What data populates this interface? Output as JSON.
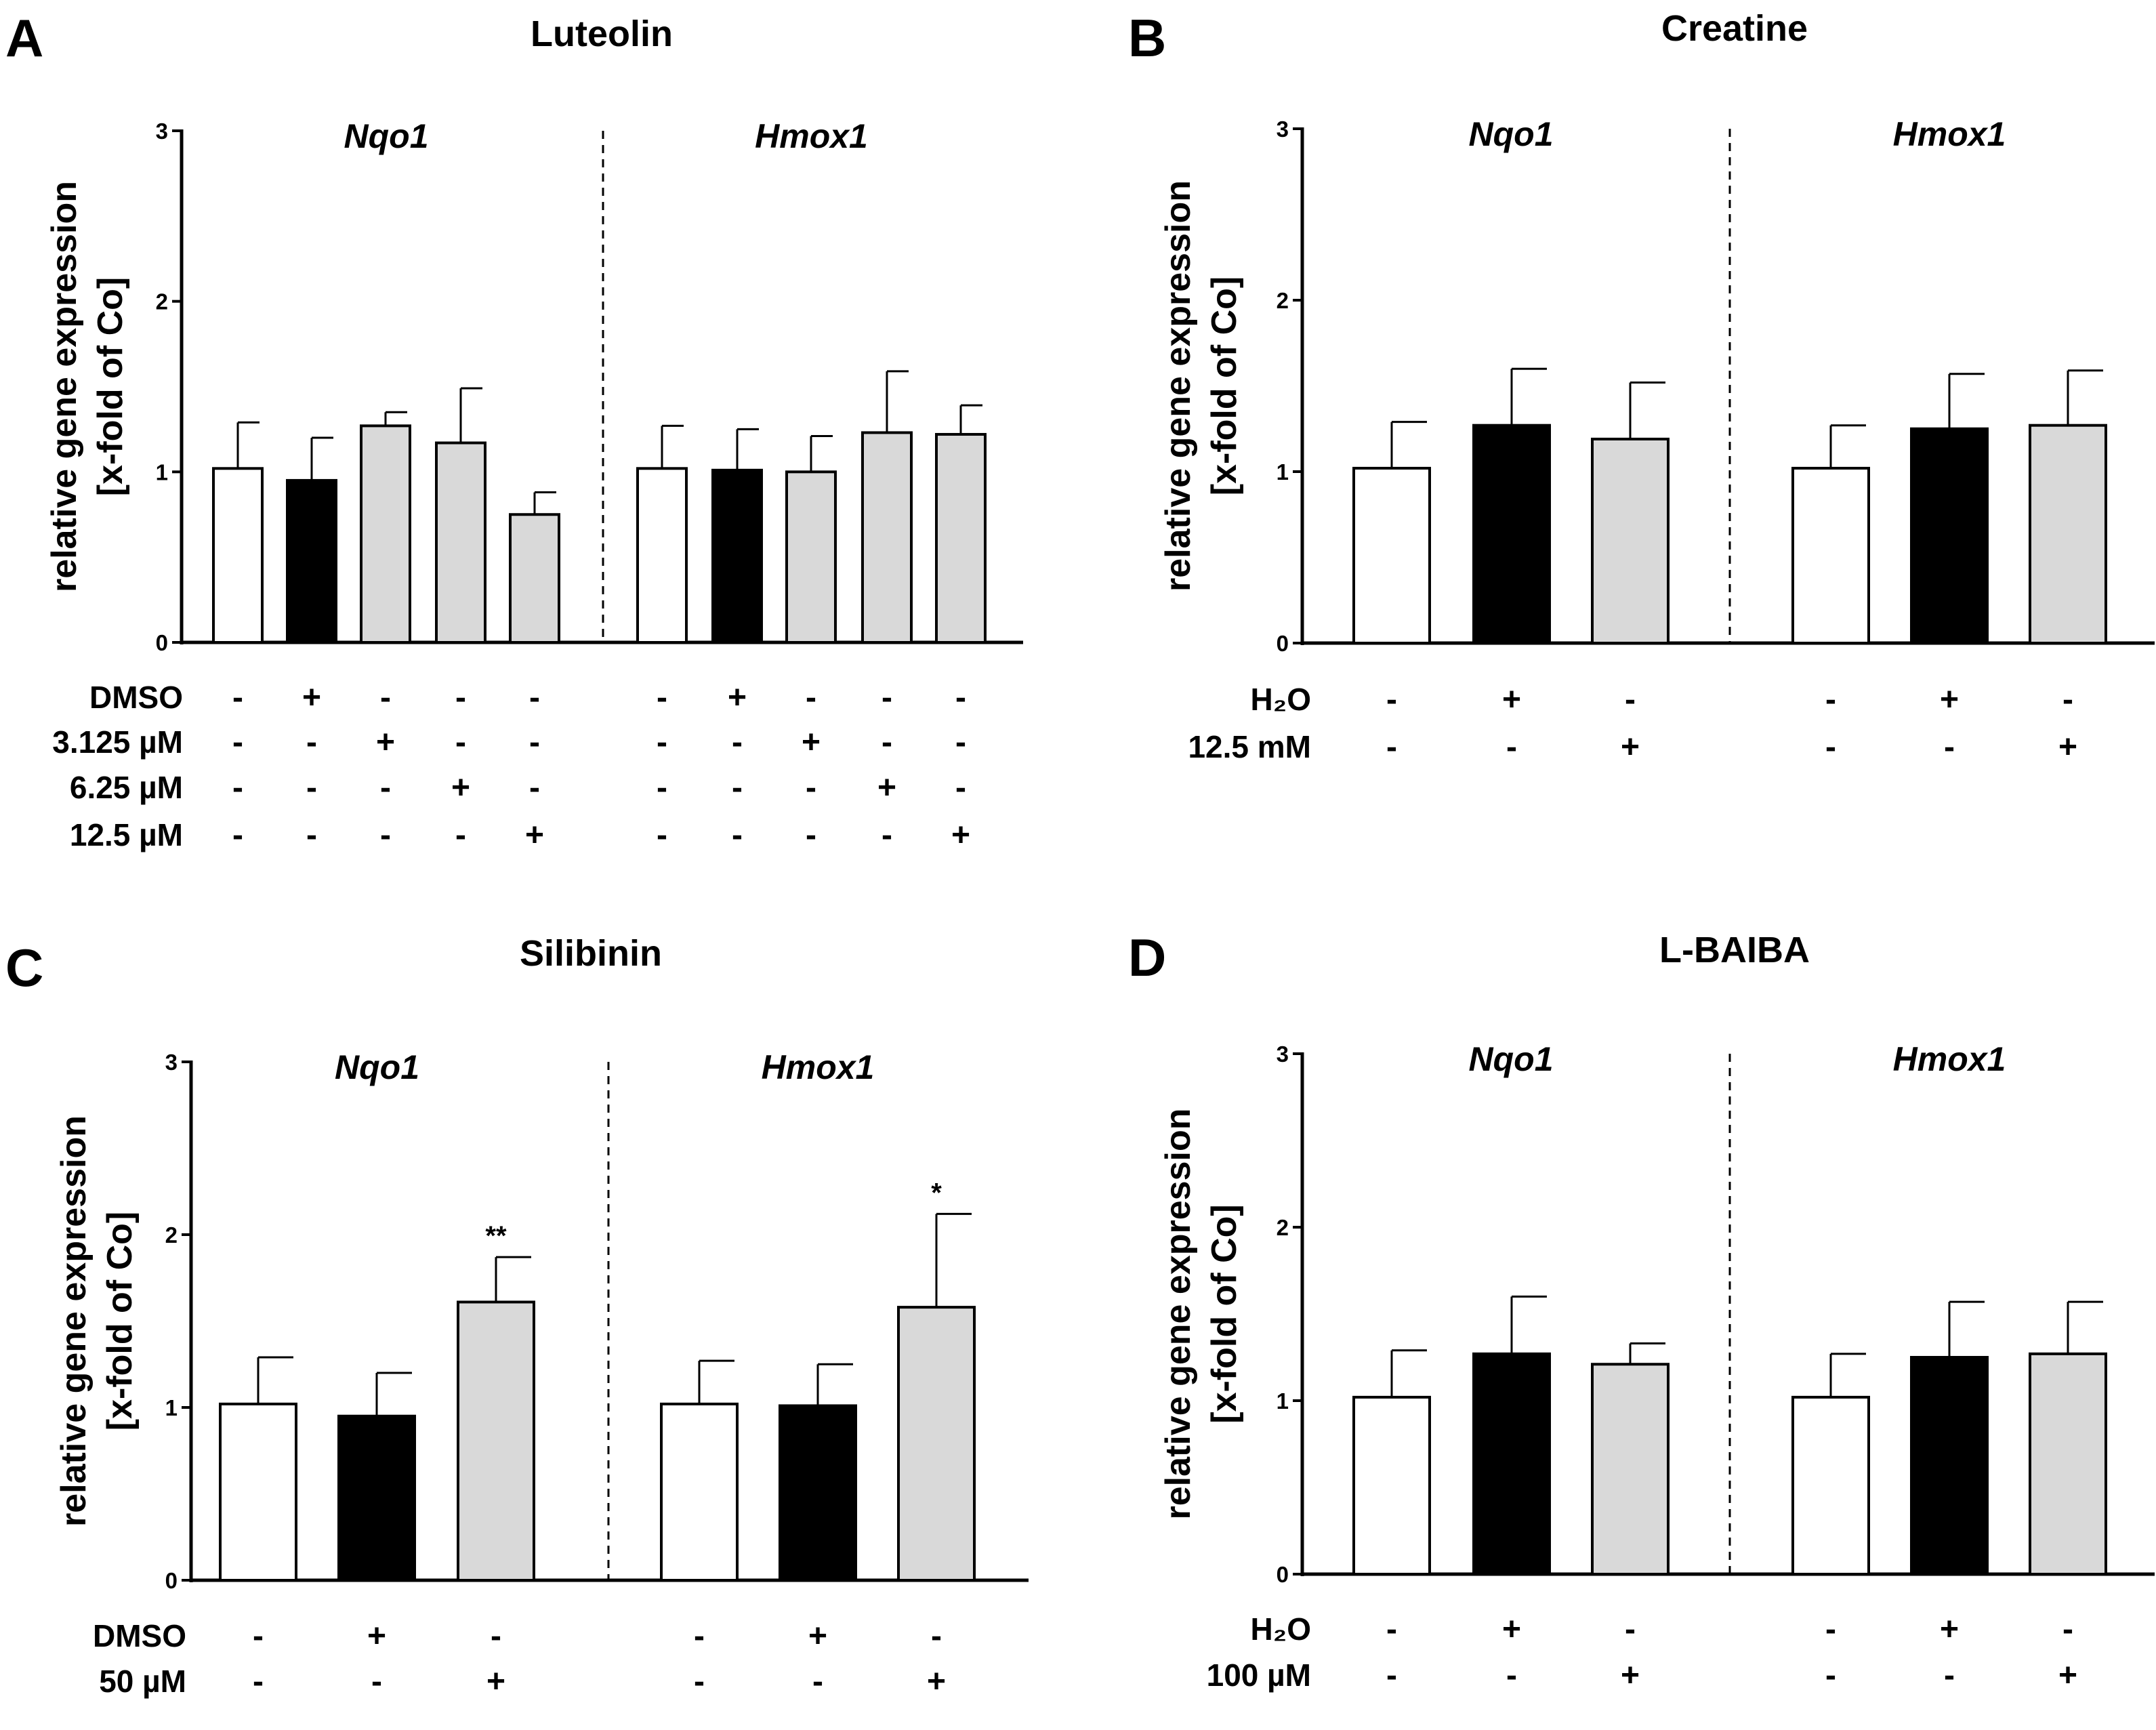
{
  "figure": {
    "colors": {
      "none": "#ffffff",
      "vehicle": "#000000",
      "treated": "#d9d9d9",
      "stroke": "#000000"
    },
    "y_axis_label_line1": "relative gene expression",
    "y_axis_label_line2": "[x-fold of Co]"
  },
  "chart_data": [
    {
      "panel": "A",
      "type": "bar",
      "title": "Luteolin",
      "ylabel": "relative gene expression [x-fold of Co]",
      "ylim": [
        0,
        3
      ],
      "yticks": [
        0,
        1,
        2,
        3
      ],
      "groups": [
        {
          "gene": "Nqo1",
          "bars": [
            {
              "value": 1.02,
              "error": 0.27,
              "fill": "none",
              "sig": ""
            },
            {
              "value": 0.95,
              "error": 0.25,
              "fill": "vehicle",
              "sig": ""
            },
            {
              "value": 1.27,
              "error": 0.08,
              "fill": "treated",
              "sig": ""
            },
            {
              "value": 1.17,
              "error": 0.32,
              "fill": "treated",
              "sig": ""
            },
            {
              "value": 0.75,
              "error": 0.13,
              "fill": "treated",
              "sig": ""
            }
          ]
        },
        {
          "gene": "Hmox1",
          "bars": [
            {
              "value": 1.02,
              "error": 0.25,
              "fill": "none",
              "sig": ""
            },
            {
              "value": 1.01,
              "error": 0.24,
              "fill": "vehicle",
              "sig": ""
            },
            {
              "value": 1.0,
              "error": 0.21,
              "fill": "treated",
              "sig": ""
            },
            {
              "value": 1.23,
              "error": 0.36,
              "fill": "treated",
              "sig": ""
            },
            {
              "value": 1.22,
              "error": 0.17,
              "fill": "treated",
              "sig": ""
            }
          ]
        }
      ],
      "conditions": [
        {
          "label": "DMSO",
          "signs": [
            "-",
            "+",
            "-",
            "-",
            "-",
            "-",
            "+",
            "-",
            "-",
            "-"
          ]
        },
        {
          "label": "3.125 µM",
          "signs": [
            "-",
            "-",
            "+",
            "-",
            "-",
            "-",
            "-",
            "+",
            "-",
            "-"
          ]
        },
        {
          "label": "6.25 µM",
          "signs": [
            "-",
            "-",
            "-",
            "+",
            "-",
            "-",
            "-",
            "-",
            "+",
            "-"
          ]
        },
        {
          "label": "12.5 µM",
          "signs": [
            "-",
            "-",
            "-",
            "-",
            "+",
            "-",
            "-",
            "-",
            "-",
            "+"
          ]
        }
      ]
    },
    {
      "panel": "B",
      "type": "bar",
      "title": "Creatine",
      "ylabel": "relative gene expression [x-fold of Co]",
      "ylim": [
        0,
        3
      ],
      "yticks": [
        0,
        1,
        2,
        3
      ],
      "groups": [
        {
          "gene": "Nqo1",
          "bars": [
            {
              "value": 1.02,
              "error": 0.27,
              "fill": "none",
              "sig": ""
            },
            {
              "value": 1.27,
              "error": 0.33,
              "fill": "vehicle",
              "sig": ""
            },
            {
              "value": 1.19,
              "error": 0.33,
              "fill": "treated",
              "sig": ""
            }
          ]
        },
        {
          "gene": "Hmox1",
          "bars": [
            {
              "value": 1.02,
              "error": 0.25,
              "fill": "none",
              "sig": ""
            },
            {
              "value": 1.25,
              "error": 0.32,
              "fill": "vehicle",
              "sig": ""
            },
            {
              "value": 1.27,
              "error": 0.32,
              "fill": "treated",
              "sig": ""
            }
          ]
        }
      ],
      "conditions": [
        {
          "label": "H₂O",
          "signs": [
            "-",
            "+",
            "-",
            "-",
            "+",
            "-"
          ]
        },
        {
          "label": "12.5 mM",
          "signs": [
            "-",
            "-",
            "+",
            "-",
            "-",
            "+"
          ]
        }
      ]
    },
    {
      "panel": "C",
      "type": "bar",
      "title": "Silibinin",
      "ylabel": "relative gene expression [x-fold of Co]",
      "ylim": [
        0,
        3
      ],
      "yticks": [
        0,
        1,
        2,
        3
      ],
      "groups": [
        {
          "gene": "Nqo1",
          "bars": [
            {
              "value": 1.02,
              "error": 0.27,
              "fill": "none",
              "sig": ""
            },
            {
              "value": 0.95,
              "error": 0.25,
              "fill": "vehicle",
              "sig": ""
            },
            {
              "value": 1.61,
              "error": 0.26,
              "fill": "treated",
              "sig": "**"
            }
          ]
        },
        {
          "gene": "Hmox1",
          "bars": [
            {
              "value": 1.02,
              "error": 0.25,
              "fill": "none",
              "sig": ""
            },
            {
              "value": 1.01,
              "error": 0.24,
              "fill": "vehicle",
              "sig": ""
            },
            {
              "value": 1.58,
              "error": 0.54,
              "fill": "treated",
              "sig": "*"
            }
          ]
        }
      ],
      "conditions": [
        {
          "label": "DMSO",
          "signs": [
            "-",
            "+",
            "-",
            "-",
            "+",
            "-"
          ]
        },
        {
          "label": "50 µM",
          "signs": [
            "-",
            "-",
            "+",
            "-",
            "-",
            "+"
          ]
        }
      ]
    },
    {
      "panel": "D",
      "type": "bar",
      "title": "L-BAIBA",
      "ylabel": "relative gene expression [x-fold of Co]",
      "ylim": [
        0,
        3
      ],
      "yticks": [
        0,
        1,
        2,
        3
      ],
      "groups": [
        {
          "gene": "Nqo1",
          "bars": [
            {
              "value": 1.02,
              "error": 0.27,
              "fill": "none",
              "sig": ""
            },
            {
              "value": 1.27,
              "error": 0.33,
              "fill": "vehicle",
              "sig": ""
            },
            {
              "value": 1.21,
              "error": 0.12,
              "fill": "treated",
              "sig": ""
            }
          ]
        },
        {
          "gene": "Hmox1",
          "bars": [
            {
              "value": 1.02,
              "error": 0.25,
              "fill": "none",
              "sig": ""
            },
            {
              "value": 1.25,
              "error": 0.32,
              "fill": "vehicle",
              "sig": ""
            },
            {
              "value": 1.27,
              "error": 0.3,
              "fill": "treated",
              "sig": ""
            }
          ]
        }
      ],
      "conditions": [
        {
          "label": "H₂O",
          "signs": [
            "-",
            "+",
            "-",
            "-",
            "+",
            "-"
          ]
        },
        {
          "label": "100 µM",
          "signs": [
            "-",
            "-",
            "+",
            "-",
            "-",
            "+"
          ]
        }
      ]
    }
  ]
}
